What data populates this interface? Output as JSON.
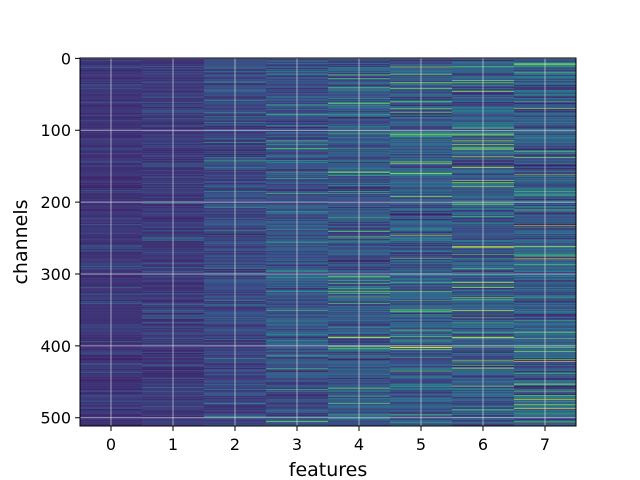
{
  "chart_data": {
    "type": "heatmap",
    "title": "",
    "xlabel": "features",
    "ylabel": "channels",
    "x_categories": [
      "0",
      "1",
      "2",
      "3",
      "4",
      "5",
      "6",
      "7"
    ],
    "y_range": [
      0,
      511
    ],
    "y_ticks": [
      0,
      100,
      200,
      300,
      400,
      500
    ],
    "y_inverted": true,
    "grid": true,
    "colormap": "viridis",
    "colormap_stops": [
      "#440154",
      "#3b528b",
      "#21918c",
      "#5ec962",
      "#fde725"
    ],
    "n_channels": 512,
    "column_base_levels": [
      0.16,
      0.18,
      0.22,
      0.26,
      0.28,
      0.3,
      0.3,
      0.3
    ],
    "column_variation": [
      0.06,
      0.08,
      0.12,
      0.15,
      0.18,
      0.2,
      0.22,
      0.22
    ],
    "highlighted_cells": [
      {
        "feature": 5,
        "channel": 402,
        "level": 0.92
      },
      {
        "feature": 6,
        "channel": 262,
        "level": 0.95
      },
      {
        "feature": 4,
        "channel": 388,
        "level": 0.85
      },
      {
        "feature": 5,
        "channel": 160,
        "level": 0.8
      },
      {
        "feature": 6,
        "channel": 106,
        "level": 0.78
      },
      {
        "feature": 7,
        "channel": 474,
        "level": 0.82
      },
      {
        "feature": 7,
        "channel": 8,
        "level": 0.75
      },
      {
        "feature": 6,
        "channel": 220,
        "level": 0.6
      },
      {
        "feature": 5,
        "channel": 60,
        "level": 0.65
      },
      {
        "feature": 3,
        "channel": 505,
        "level": 0.7
      }
    ]
  }
}
